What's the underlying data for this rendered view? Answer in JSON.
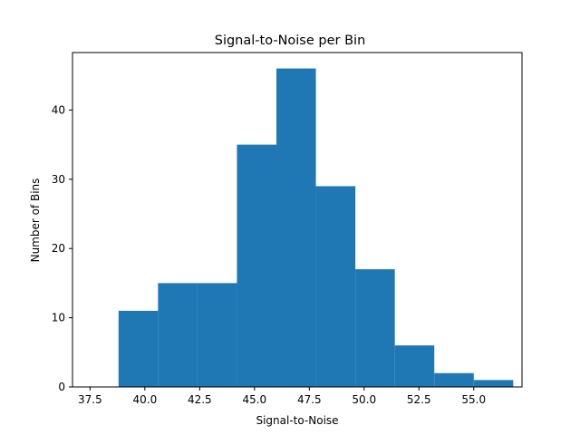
{
  "chart_data": {
    "type": "bar",
    "title": "Signal-to-Noise per Bin",
    "xlabel": "Signal-to-Noise",
    "ylabel": "Number of Bins",
    "histogram": true,
    "bin_edges": [
      38.8,
      40.6,
      42.4,
      44.2,
      46.0,
      47.8,
      49.6,
      51.4,
      53.2,
      55.0,
      56.8
    ],
    "values": [
      11,
      15,
      15,
      35,
      46,
      29,
      17,
      6,
      2,
      1
    ],
    "xlim": [
      36.7,
      57.2
    ],
    "ylim": [
      0,
      48.3
    ],
    "xticks": [
      "37.5",
      "40.0",
      "42.5",
      "45.0",
      "47.5",
      "50.0",
      "52.5",
      "55.0"
    ],
    "yticks": [
      "0",
      "10",
      "20",
      "30",
      "40"
    ],
    "grid": false,
    "legend": "none",
    "bar_color": "#1f77b4"
  }
}
